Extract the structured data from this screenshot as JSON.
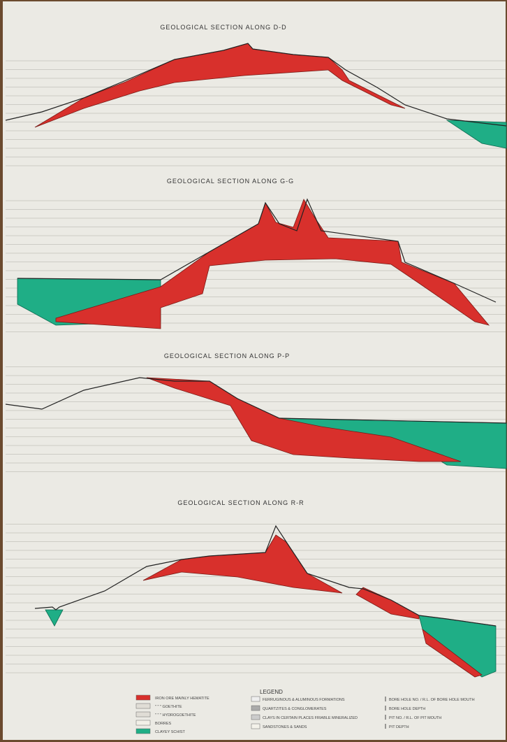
{
  "sections": [
    {
      "title": "GEOLOGICAL SECTION ALONG D-D"
    },
    {
      "title": "GEOLOGICAL SECTION ALONG G-G"
    },
    {
      "title": "GEOLOGICAL SECTION ALONG P-P"
    },
    {
      "title": "GEOLOGICAL SECTION ALONG R-R"
    }
  ],
  "legend": {
    "title": "LEGEND",
    "left": [
      "IRON ORE MAINLY HEMATITE",
      "\"  \"  \"  GOETHITE",
      "\"  \"  \"  HYDROGOETHITE",
      "BORRES",
      "CLAYEY SCHIST"
    ],
    "middle": [
      "FERRUGINOUS & ALUMINOUS FORMATIONS",
      "QUARTZITES & CONGLOMERATES",
      "CLAYS IN CERTAIN PLACES FRIABLE MINERALIZED",
      "SANDSTONES & SANDS"
    ],
    "right": [
      "BORE HOLE NO. / R.L. OF BORE HOLE MOUTH",
      "BORE HOLE DEPTH",
      "PIT NO. / R.L. OF PIT MOUTH",
      "PIT DEPTH"
    ]
  }
}
